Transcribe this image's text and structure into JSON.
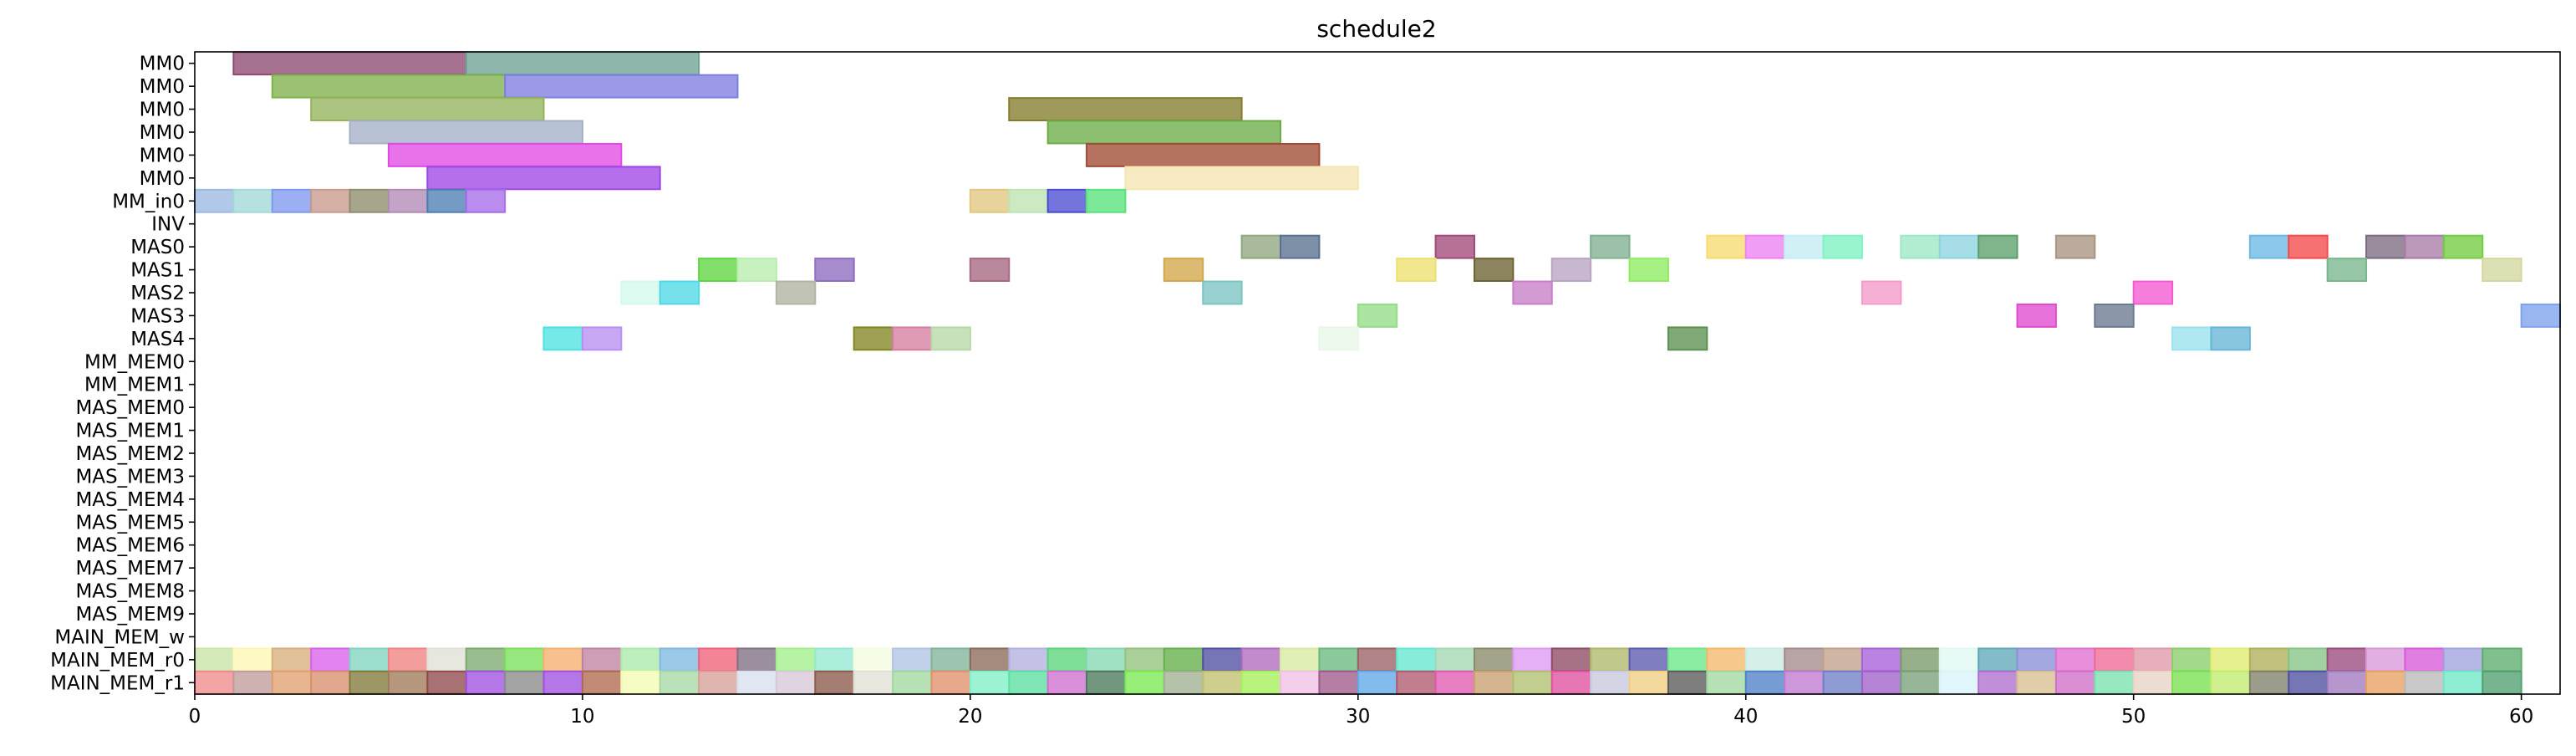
{
  "chart_data": {
    "type": "gantt",
    "title": "schedule2",
    "xlabel": "",
    "ylabel": "",
    "xlim": [
      0,
      61
    ],
    "x_ticks": [
      0,
      10,
      20,
      30,
      40,
      50,
      60
    ],
    "x_tick_labels": [
      "0",
      "10",
      "20",
      "30",
      "40",
      "50",
      "60"
    ],
    "rows": [
      "MM0",
      "MM0",
      "MM0",
      "MM0",
      "MM0",
      "MM0",
      "MM_in0",
      "INV",
      "MAS0",
      "MAS1",
      "MAS2",
      "MAS3",
      "MAS4",
      "MM_MEM0",
      "MM_MEM1",
      "MAS_MEM0",
      "MAS_MEM1",
      "MAS_MEM2",
      "MAS_MEM3",
      "MAS_MEM4",
      "MAS_MEM5",
      "MAS_MEM6",
      "MAS_MEM7",
      "MAS_MEM8",
      "MAS_MEM9",
      "MAIN_MEM_w",
      "MAIN_MEM_r0",
      "MAIN_MEM_r1"
    ],
    "grid": false,
    "legend": "none",
    "tasks": [
      {
        "row": 0,
        "start": 1,
        "end": 7,
        "color": "#8e4a72"
      },
      {
        "row": 0,
        "start": 7,
        "end": 13,
        "color": "#6fa294"
      },
      {
        "row": 1,
        "start": 2,
        "end": 8,
        "color": "#7fb04a"
      },
      {
        "row": 1,
        "start": 8,
        "end": 14,
        "color": "#7d7ee0"
      },
      {
        "row": 2,
        "start": 3,
        "end": 9,
        "color": "#94b35b"
      },
      {
        "row": 2,
        "start": 21,
        "end": 27,
        "color": "#857c2e"
      },
      {
        "row": 3,
        "start": 4,
        "end": 10,
        "color": "#a5b0c8"
      },
      {
        "row": 3,
        "start": 22,
        "end": 28,
        "color": "#6cad48"
      },
      {
        "row": 4,
        "start": 5,
        "end": 11,
        "color": "#e04ae3"
      },
      {
        "row": 4,
        "start": 23,
        "end": 29,
        "color": "#a14a35"
      },
      {
        "row": 5,
        "start": 6,
        "end": 12,
        "color": "#a146e6"
      },
      {
        "row": 5,
        "start": 24,
        "end": 30,
        "color": "#f4e6b2"
      },
      {
        "row": 6,
        "start": 0,
        "end": 1,
        "color": "#9bb9e2"
      },
      {
        "row": 6,
        "start": 1,
        "end": 2,
        "color": "#a3d8d8"
      },
      {
        "row": 6,
        "start": 2,
        "end": 3,
        "color": "#7f99ee"
      },
      {
        "row": 6,
        "start": 3,
        "end": 4,
        "color": "#c89a8d"
      },
      {
        "row": 6,
        "start": 4,
        "end": 5,
        "color": "#8e8d6c"
      },
      {
        "row": 6,
        "start": 5,
        "end": 6,
        "color": "#b28ab7"
      },
      {
        "row": 6,
        "start": 6,
        "end": 7,
        "color": "#4b7fb3"
      },
      {
        "row": 6,
        "start": 7,
        "end": 8,
        "color": "#a66be8"
      },
      {
        "row": 6,
        "start": 20,
        "end": 21,
        "color": "#e0c67f"
      },
      {
        "row": 6,
        "start": 21,
        "end": 22,
        "color": "#bfe3b1"
      },
      {
        "row": 6,
        "start": 22,
        "end": 23,
        "color": "#4b4ed2"
      },
      {
        "row": 6,
        "start": 23,
        "end": 24,
        "color": "#58e27a"
      },
      {
        "row": 8,
        "start": 27,
        "end": 28,
        "color": "#8fa67f"
      },
      {
        "row": 8,
        "start": 28,
        "end": 29,
        "color": "#5a6f8f"
      },
      {
        "row": 8,
        "start": 32,
        "end": 33,
        "color": "#a04a78"
      },
      {
        "row": 8,
        "start": 36,
        "end": 37,
        "color": "#7fb08f"
      },
      {
        "row": 8,
        "start": 39,
        "end": 40,
        "color": "#f6dc6e"
      },
      {
        "row": 8,
        "start": 40,
        "end": 41,
        "color": "#ee82f2"
      },
      {
        "row": 8,
        "start": 41,
        "end": 42,
        "color": "#c4ecf4"
      },
      {
        "row": 8,
        "start": 42,
        "end": 43,
        "color": "#7ef2c2"
      },
      {
        "row": 8,
        "start": 44,
        "end": 45,
        "color": "#9de8c4"
      },
      {
        "row": 8,
        "start": 45,
        "end": 46,
        "color": "#8ed4e0"
      },
      {
        "row": 8,
        "start": 46,
        "end": 47,
        "color": "#5c9f6a"
      },
      {
        "row": 8,
        "start": 48,
        "end": 49,
        "color": "#a89482"
      },
      {
        "row": 8,
        "start": 53,
        "end": 54,
        "color": "#6ab8e4"
      },
      {
        "row": 8,
        "start": 54,
        "end": 55,
        "color": "#f44a4a"
      },
      {
        "row": 8,
        "start": 56,
        "end": 57,
        "color": "#7a6a80"
      },
      {
        "row": 8,
        "start": 57,
        "end": 58,
        "color": "#a97ba7"
      },
      {
        "row": 8,
        "start": 58,
        "end": 59,
        "color": "#72cc42"
      },
      {
        "row": 9,
        "start": 13,
        "end": 14,
        "color": "#5ed640"
      },
      {
        "row": 9,
        "start": 14,
        "end": 15,
        "color": "#b7eeae"
      },
      {
        "row": 9,
        "start": 16,
        "end": 17,
        "color": "#8e6cbf"
      },
      {
        "row": 9,
        "start": 20,
        "end": 21,
        "color": "#a66780"
      },
      {
        "row": 9,
        "start": 25,
        "end": 26,
        "color": "#d4a64a"
      },
      {
        "row": 9,
        "start": 31,
        "end": 32,
        "color": "#ece06e"
      },
      {
        "row": 9,
        "start": 33,
        "end": 34,
        "color": "#6c6232"
      },
      {
        "row": 9,
        "start": 35,
        "end": 36,
        "color": "#b8a4c2"
      },
      {
        "row": 9,
        "start": 37,
        "end": 38,
        "color": "#8eec62"
      },
      {
        "row": 9,
        "start": 55,
        "end": 56,
        "color": "#78b68c"
      },
      {
        "row": 9,
        "start": 59,
        "end": 60,
        "color": "#d4d6a0"
      },
      {
        "row": 10,
        "start": 11,
        "end": 12,
        "color": "#d2f9ec"
      },
      {
        "row": 10,
        "start": 12,
        "end": 13,
        "color": "#4ed8e6"
      },
      {
        "row": 10,
        "start": 15,
        "end": 16,
        "color": "#b0b4a0"
      },
      {
        "row": 10,
        "start": 26,
        "end": 27,
        "color": "#7cc4c4"
      },
      {
        "row": 10,
        "start": 34,
        "end": 35,
        "color": "#c87ec8"
      },
      {
        "row": 10,
        "start": 43,
        "end": 44,
        "color": "#f29ac8"
      },
      {
        "row": 10,
        "start": 50,
        "end": 51,
        "color": "#f25ad2"
      },
      {
        "row": 11,
        "start": 30,
        "end": 31,
        "color": "#94dc86"
      },
      {
        "row": 11,
        "start": 47,
        "end": 48,
        "color": "#e04ad0"
      },
      {
        "row": 11,
        "start": 49,
        "end": 50,
        "color": "#6a7a90"
      },
      {
        "row": 11,
        "start": 60,
        "end": 61,
        "color": "#7ea2ec"
      },
      {
        "row": 12,
        "start": 9,
        "end": 10,
        "color": "#4ee2e2"
      },
      {
        "row": 12,
        "start": 10,
        "end": 11,
        "color": "#b88ef2"
      },
      {
        "row": 12,
        "start": 17,
        "end": 18,
        "color": "#838722"
      },
      {
        "row": 12,
        "start": 18,
        "end": 19,
        "color": "#d67ea0"
      },
      {
        "row": 12,
        "start": 19,
        "end": 20,
        "color": "#b7d8a8"
      },
      {
        "row": 12,
        "start": 29,
        "end": 30,
        "color": "#e8f7e8"
      },
      {
        "row": 12,
        "start": 38,
        "end": 39,
        "color": "#5c9050"
      },
      {
        "row": 12,
        "start": 51,
        "end": 52,
        "color": "#9ae2ee"
      },
      {
        "row": 12,
        "start": 52,
        "end": 53,
        "color": "#66b6d6"
      }
    ],
    "mem_rows": [
      {
        "row": 26,
        "colors": [
          "#c9e4a6",
          "#fef7b4",
          "#d8b07c",
          "#d862ec",
          "#80d4c0",
          "#f08282",
          "#e0e0d6",
          "#7caa6e",
          "#7ae05a",
          "#f4b06e",
          "#c082a2",
          "#aaeaaa",
          "#80b8e0",
          "#f0627a",
          "#807082",
          "#a2f08a",
          "#96e8d2",
          "#f4fce0",
          "#b0c4e4",
          "#80b49a",
          "#8a6a5a",
          "#b4b0e0",
          "#5ad47a",
          "#86d8b2",
          "#94c27c",
          "#64b04a",
          "#5050a2",
          "#b06abe",
          "#d6eaa2",
          "#6ab880",
          "#9a6064",
          "#64e8d0",
          "#a4d8b4",
          "#8a8a6a",
          "#de9af2",
          "#904a64",
          "#b0b86a",
          "#5a5ab0",
          "#6ae88a",
          "#f4b86a",
          "#c8ece2",
          "#a48a8a",
          "#c0a08a",
          "#a860d8",
          "#7a9a6a",
          "#e0f8f2",
          "#60a8b8",
          "#8a90d8",
          "#e070d0",
          "#ee6a96",
          "#e098a8",
          "#8ace6a",
          "#e0ec70",
          "#b0b05a",
          "#86c486",
          "#9a4a7c",
          "#d898d8",
          "#d85ad8",
          "#a0a4e0",
          "#5eae6e"
        ]
      },
      {
        "row": 27,
        "colors": [
          "#f08a8a",
          "#c09c9c",
          "#e0a070",
          "#d8906e",
          "#807a3a",
          "#a07a5a",
          "#904a4a",
          "#a050e0",
          "#8a8a8a",
          "#a050e0",
          "#b06a50",
          "#f4fcb4",
          "#a8d8a8",
          "#d8a098",
          "#d8e0ee",
          "#d8c8d8",
          "#8a5a4a",
          "#e0e0d6",
          "#a0d8a0",
          "#e0906a",
          "#80f0c8",
          "#5ae0a0",
          "#d070d0",
          "#4a7a5a",
          "#7aea52",
          "#a0b090",
          "#c0c070",
          "#a4f05a",
          "#f0c0e4",
          "#a05a8a",
          "#60a8e8",
          "#b05a70",
          "#e05ab0",
          "#c8a070",
          "#b0c070",
          "#e050a0",
          "#c8c8e0",
          "#f0d080",
          "#5a5a5a",
          "#a0d8a0",
          "#5080c8",
          "#c07ad0",
          "#7080c8",
          "#a060c8",
          "#7aa07a",
          "#d8f4f8",
          "#b070d0",
          "#d8c090",
          "#d070c8",
          "#7ae0b0",
          "#e8d4c4",
          "#7ae050",
          "#c0ec70",
          "#80806a",
          "#5050a0",
          "#a07ac0",
          "#e8a060",
          "#b8b8b8",
          "#70e8c8",
          "#50a070"
        ]
      }
    ]
  }
}
